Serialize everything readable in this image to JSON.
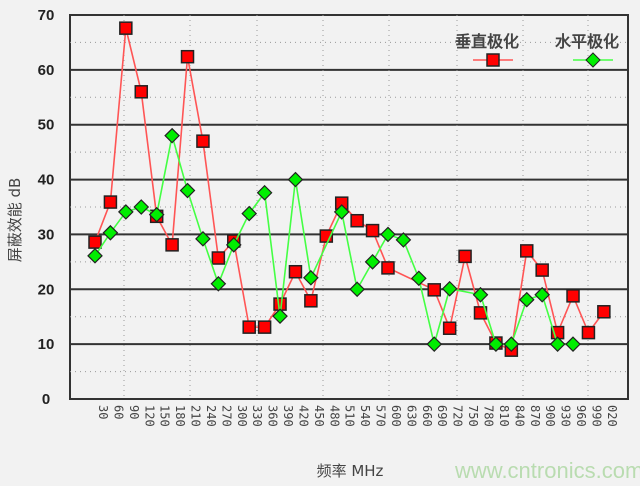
{
  "chart_data": {
    "type": "line",
    "title": "",
    "xlabel": "频率 MHz",
    "ylabel": "屏蔽效能 dB",
    "ylim": [
      0,
      70
    ],
    "yticks": [
      0,
      10,
      20,
      30,
      40,
      50,
      60,
      70
    ],
    "grid": true,
    "legend_position": "top-right",
    "categories": [
      "30",
      "60",
      "90",
      "120",
      "150",
      "180",
      "210",
      "240",
      "270",
      "300",
      "330",
      "360",
      "390",
      "420",
      "450",
      "480",
      "510",
      "540",
      "570",
      "600",
      "630",
      "660",
      "690",
      "720",
      "750",
      "780",
      "810",
      "840",
      "870",
      "900",
      "930",
      "960",
      "990",
      "020"
    ],
    "series": [
      {
        "name": "垂直极化",
        "color": "#ff0000",
        "marker": "square",
        "values": [
          28.6,
          35.9,
          67.6,
          56.0,
          33.3,
          28.1,
          62.4,
          47.0,
          25.7,
          28.8,
          13.1,
          13.1,
          17.3,
          23.2,
          17.9,
          29.7,
          35.7,
          32.5,
          30.7,
          23.9,
          null,
          null,
          19.9,
          12.9,
          26.0,
          15.7,
          10.2,
          8.9,
          27.0,
          23.5,
          12.1,
          18.8,
          12.1,
          15.9
        ]
      },
      {
        "name": "水平极化",
        "color": "#00ee00",
        "marker": "diamond",
        "values": [
          26.1,
          30.3,
          34.1,
          35.0,
          33.6,
          48.0,
          38.0,
          29.2,
          21.0,
          28.1,
          33.8,
          37.6,
          15.1,
          40.0,
          22.1,
          null,
          34.1,
          20.0,
          25.0,
          30.0,
          29.0,
          22.0,
          10.0,
          20.1,
          null,
          19.0,
          10.0,
          10.0,
          18.1,
          19.0,
          10.0,
          10.0,
          null,
          null
        ]
      }
    ]
  },
  "watermark": "www.cntronics.com"
}
